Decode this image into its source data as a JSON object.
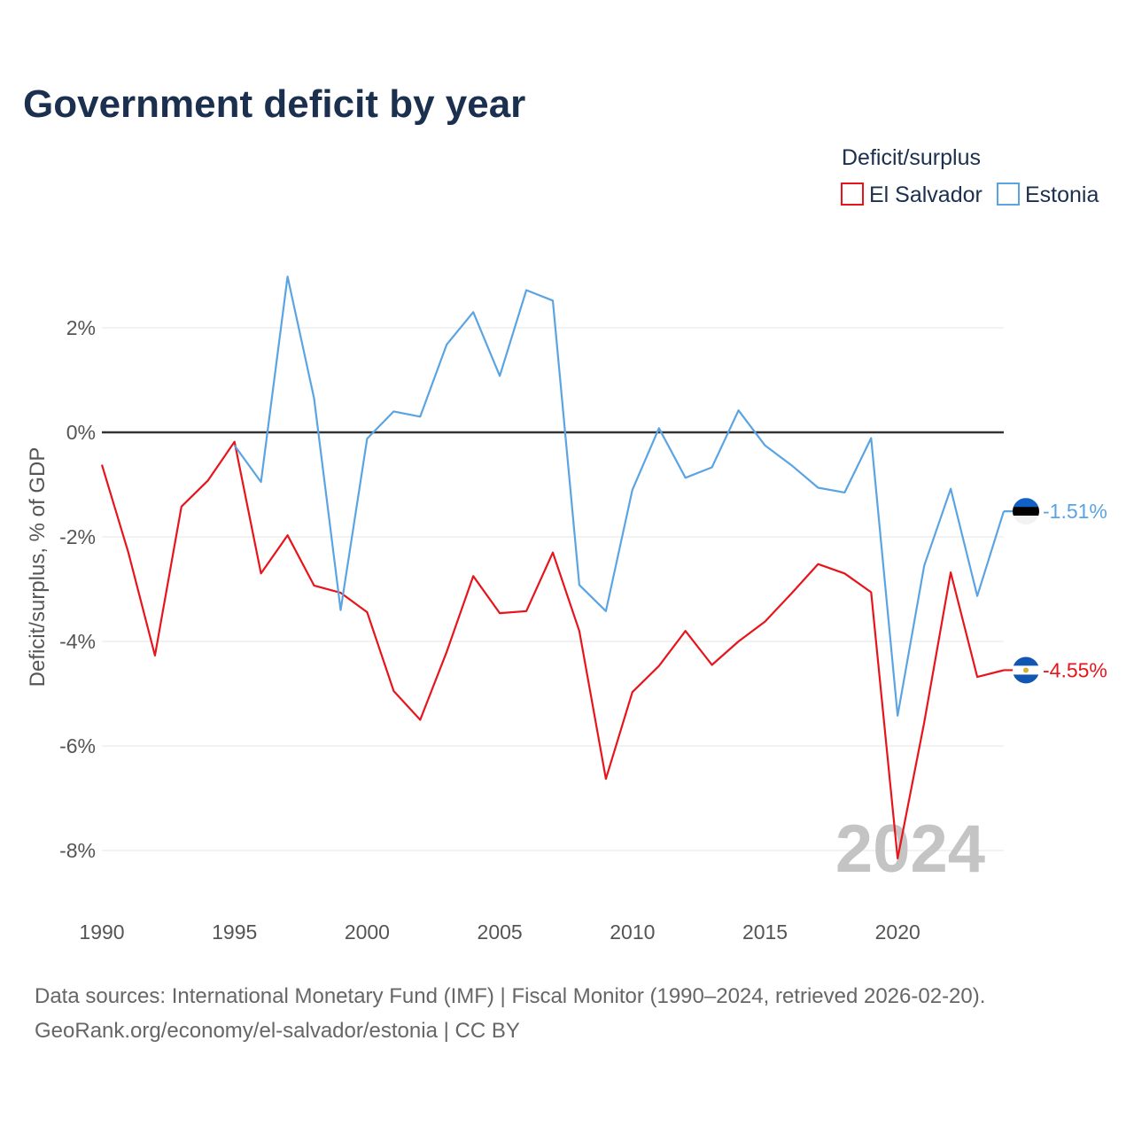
{
  "chart_data": {
    "type": "line",
    "title": "Government deficit by year",
    "ylabel": "Deficit/surplus, % of GDP",
    "xlabel": "",
    "xlim": [
      1990,
      2024
    ],
    "ylim": [
      -9,
      3.5
    ],
    "x_ticks": [
      1990,
      1995,
      2000,
      2005,
      2010,
      2015,
      2020
    ],
    "y_ticks": [
      -8,
      -6,
      -4,
      -2,
      0,
      2
    ],
    "y_tick_labels": [
      "-8%",
      "-6%",
      "-4%",
      "-2%",
      "0%",
      "2%"
    ],
    "grid": true,
    "legend_title": "Deficit/surplus",
    "legend_position": "top-right",
    "year_watermark": "2024",
    "series": [
      {
        "name": "El Salvador",
        "color": "#e8141b",
        "end_label": "-4.55%",
        "flag": "el-salvador-flag-icon",
        "x": [
          1990,
          1991,
          1992,
          1993,
          1994,
          1995,
          1996,
          1997,
          1998,
          1999,
          2000,
          2001,
          2002,
          2003,
          2004,
          2005,
          2006,
          2007,
          2008,
          2009,
          2010,
          2011,
          2012,
          2013,
          2014,
          2015,
          2016,
          2017,
          2018,
          2019,
          2020,
          2021,
          2022,
          2023,
          2024
        ],
        "values": [
          -0.62,
          -2.3,
          -4.27,
          -1.42,
          -0.92,
          -0.18,
          -2.7,
          -1.97,
          -2.93,
          -3.07,
          -3.44,
          -4.95,
          -5.5,
          -4.2,
          -2.75,
          -3.46,
          -3.42,
          -2.3,
          -3.8,
          -6.63,
          -4.97,
          -4.47,
          -3.8,
          -4.45,
          -4.0,
          -3.62,
          -3.08,
          -2.52,
          -2.7,
          -3.06,
          -8.15,
          -5.55,
          -2.68,
          -4.68,
          -4.55
        ]
      },
      {
        "name": "Estonia",
        "color": "#5ba4e3",
        "end_label": "-1.51%",
        "flag": "estonia-flag-icon",
        "x": [
          1995,
          1996,
          1997,
          1998,
          1999,
          2000,
          2001,
          2002,
          2003,
          2004,
          2005,
          2006,
          2007,
          2008,
          2009,
          2010,
          2011,
          2012,
          2013,
          2014,
          2015,
          2016,
          2017,
          2018,
          2019,
          2020,
          2021,
          2022,
          2023,
          2024
        ],
        "values": [
          -0.25,
          -0.95,
          2.98,
          0.65,
          -3.4,
          -0.12,
          0.4,
          0.3,
          1.68,
          2.3,
          1.08,
          2.72,
          2.52,
          -2.92,
          -3.42,
          -1.1,
          0.08,
          -0.87,
          -0.67,
          0.42,
          -0.25,
          -0.63,
          -1.06,
          -1.15,
          -0.11,
          -5.42,
          -2.55,
          -1.08,
          -3.13,
          -1.51
        ]
      }
    ]
  },
  "footer": {
    "source_line": "Data sources: International Monetary Fund (IMF) | Fiscal Monitor (1990–2024, retrieved 2026-02-20).",
    "attribution_line": "GeoRank.org/economy/el-salvador/estonia | CC BY"
  }
}
